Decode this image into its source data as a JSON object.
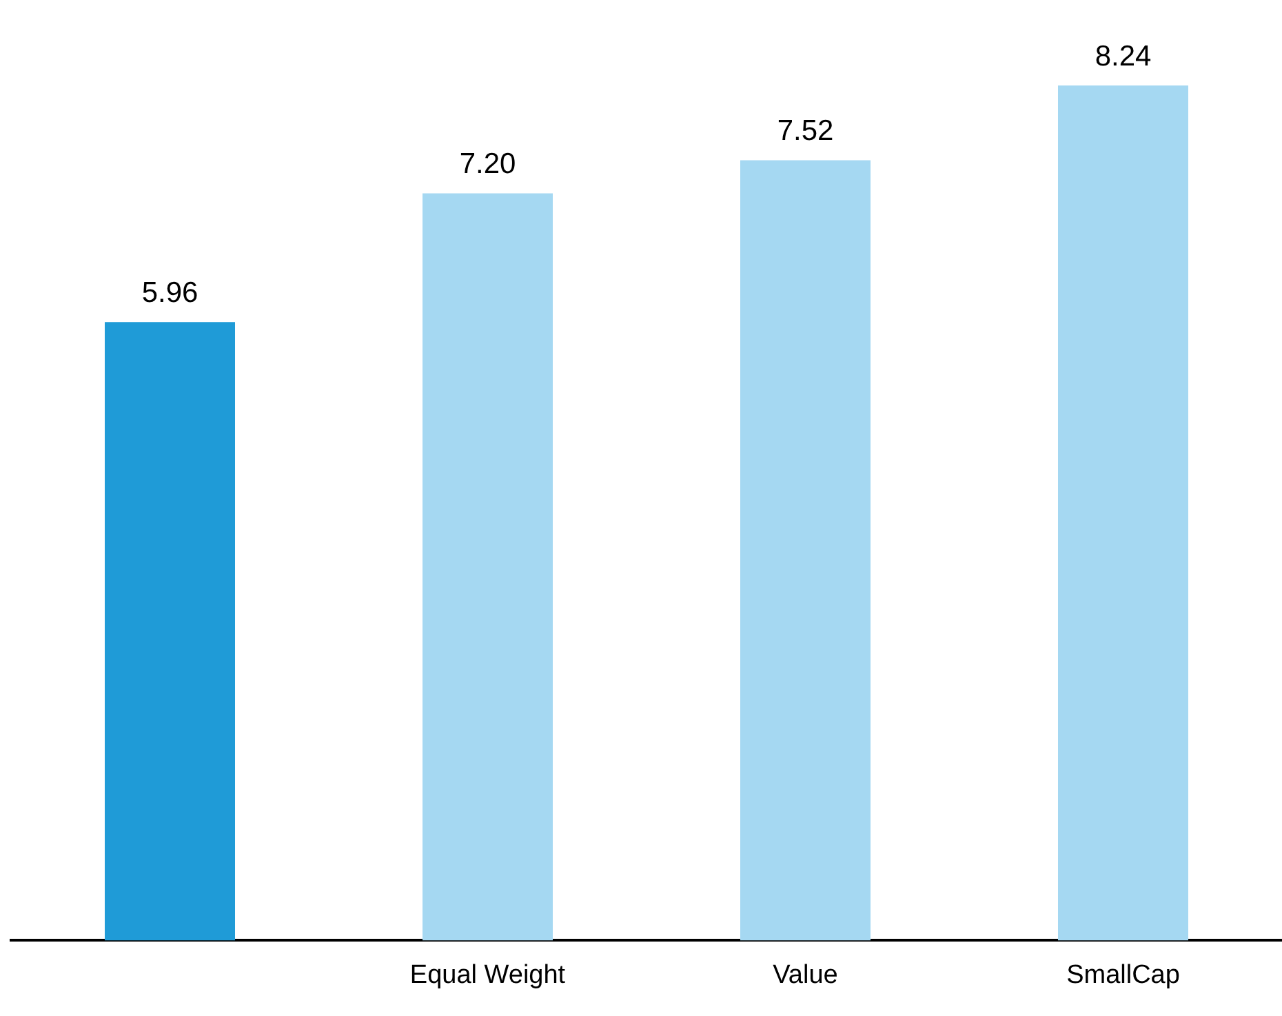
{
  "chart_data": {
    "type": "bar",
    "categories": [
      null,
      "Equal Weight",
      "Value",
      "SmallCap"
    ],
    "values": [
      5.96,
      7.2,
      7.52,
      8.24
    ],
    "colors": [
      "#1f9bd7",
      "#a5d8f2",
      "#a5d8f2",
      "#a5d8f2"
    ],
    "value_labels": [
      "5.96",
      "7.20",
      "7.52",
      "8.24"
    ],
    "grid": false,
    "legend": false
  }
}
